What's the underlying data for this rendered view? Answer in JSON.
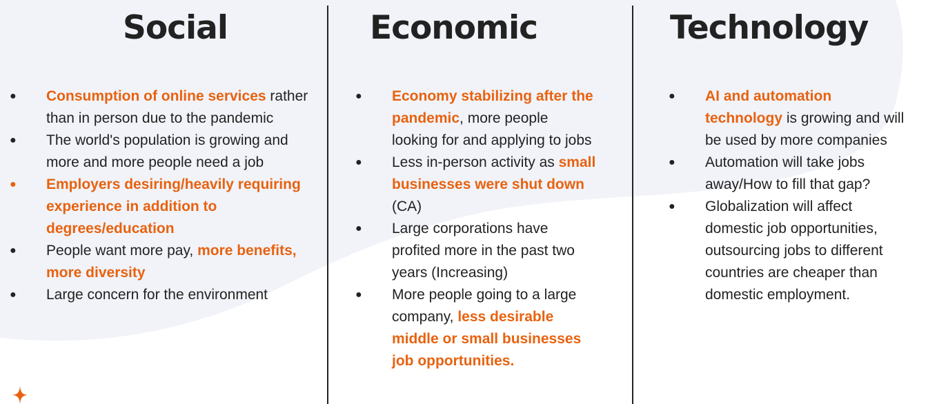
{
  "colors": {
    "accent": "#e8620f",
    "text": "#222222",
    "background_blob": "#f1f3f9"
  },
  "columns": [
    {
      "title": "Social",
      "items": [
        {
          "bullet_color": "text",
          "segments": [
            {
              "text": "Consumption of online services",
              "highlight": true
            },
            {
              "text": " rather than in person due to the pandemic",
              "highlight": false
            }
          ]
        },
        {
          "bullet_color": "text",
          "segments": [
            {
              "text": "The world's population is growing and more and more people need a job",
              "highlight": false
            }
          ]
        },
        {
          "bullet_color": "accent",
          "segments": [
            {
              "text": "Employers desiring/heavily requiring experience in addition to degrees/education",
              "highlight": true
            }
          ]
        },
        {
          "bullet_color": "text",
          "segments": [
            {
              "text": "People want more pay, ",
              "highlight": false
            },
            {
              "text": "more benefits, more diversity",
              "highlight": true
            }
          ]
        },
        {
          "bullet_color": "text",
          "segments": [
            {
              "text": "Large concern for the environment",
              "highlight": false
            }
          ]
        }
      ]
    },
    {
      "title": "Economic",
      "items": [
        {
          "bullet_color": "text",
          "segments": [
            {
              "text": "Economy stabilizing after the pandemic",
              "highlight": true
            },
            {
              "text": ", more people looking for and applying to jobs",
              "highlight": false
            }
          ]
        },
        {
          "bullet_color": "text",
          "segments": [
            {
              "text": "Less in-person activity as ",
              "highlight": false
            },
            {
              "text": "small businesses were shut down",
              "highlight": true
            },
            {
              "text": " (CA)",
              "highlight": false
            }
          ]
        },
        {
          "bullet_color": "text",
          "segments": [
            {
              "text": "Large corporations have profited more in the past two years (Increasing)",
              "highlight": false
            }
          ]
        },
        {
          "bullet_color": "text",
          "segments": [
            {
              "text": "More people going to a large company, ",
              "highlight": false
            },
            {
              "text": "less desirable middle or small businesses job opportunities.",
              "highlight": true
            }
          ]
        }
      ]
    },
    {
      "title": "Technology",
      "items": [
        {
          "bullet_color": "text",
          "segments": [
            {
              "text": "AI and automation technology",
              "highlight": true
            },
            {
              "text": " is growing and will be used by more companies",
              "highlight": false
            }
          ]
        },
        {
          "bullet_color": "text",
          "segments": [
            {
              "text": "Automation will take jobs away/How to fill that gap?",
              "highlight": false
            }
          ]
        },
        {
          "bullet_color": "text",
          "segments": [
            {
              "text": "Globalization will affect domestic job opportunities, outsourcing jobs to different countries are cheaper than domestic employment.",
              "highlight": false
            }
          ]
        }
      ]
    }
  ],
  "decor": {
    "bullet_glyph": "●",
    "star_icon": "four-point-star-icon"
  }
}
